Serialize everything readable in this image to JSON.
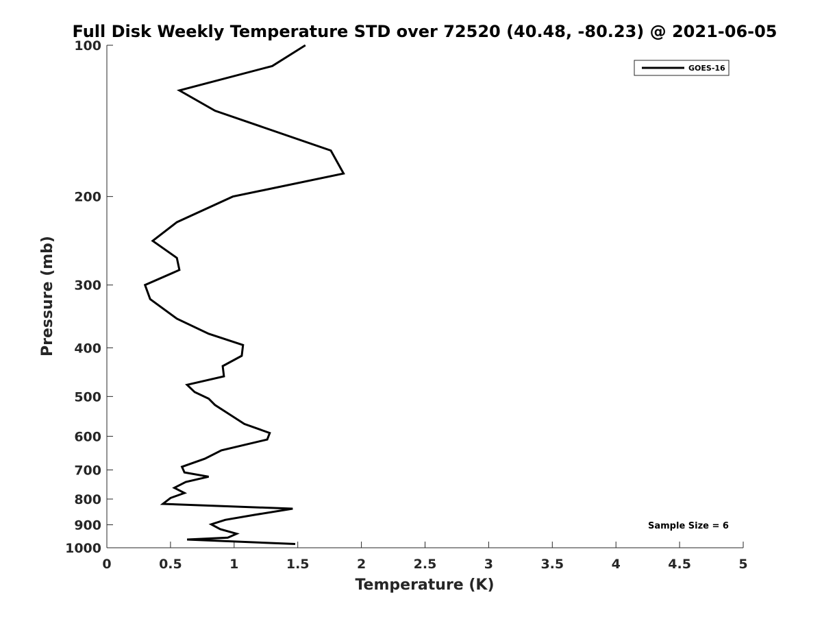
{
  "chart_data": {
    "type": "line",
    "title": "Full Disk Weekly Temperature STD over 72520 (40.48, -80.23) @ 2021-06-05",
    "xlabel": "Temperature (K)",
    "ylabel": "Pressure (mb)",
    "xlim": [
      0,
      5
    ],
    "ylim": [
      100,
      1000
    ],
    "y_scale": "log",
    "y_reversed": true,
    "x_ticks": [
      "0",
      "0.5",
      "1",
      "1.5",
      "2",
      "2.5",
      "3",
      "3.5",
      "4",
      "4.5",
      "5"
    ],
    "x_tick_values": [
      0,
      0.5,
      1,
      1.5,
      2,
      2.5,
      3,
      3.5,
      4,
      4.5,
      5
    ],
    "y_ticks": [
      "100",
      "200",
      "300",
      "400",
      "500",
      "600",
      "700",
      "800",
      "900",
      "1000"
    ],
    "y_tick_values": [
      100,
      200,
      300,
      400,
      500,
      600,
      700,
      800,
      900,
      1000
    ],
    "grid": false,
    "legend_position": "top-right",
    "series": [
      {
        "name": "GOES-16",
        "color": "#000000",
        "x": [
          1.56,
          1.3,
          0.57,
          0.85,
          1.76,
          1.86,
          0.99,
          0.55,
          0.36,
          0.55,
          0.57,
          0.3,
          0.34,
          0.55,
          0.8,
          1.07,
          1.06,
          0.91,
          0.92,
          0.63,
          0.69,
          0.8,
          0.85,
          0.98,
          1.08,
          1.28,
          1.26,
          0.9,
          0.77,
          0.59,
          0.61,
          0.8,
          0.62,
          0.53,
          0.61,
          0.5,
          0.44,
          1.46,
          1.16,
          0.93,
          0.82,
          0.89,
          1.02,
          0.95,
          0.63,
          1.48
        ],
        "y": [
          100,
          110,
          123,
          135,
          162,
          180,
          200,
          225,
          245,
          265,
          280,
          300,
          320,
          350,
          375,
          395,
          415,
          435,
          456,
          474,
          490,
          505,
          520,
          546,
          567,
          591,
          609,
          640,
          665,
          690,
          708,
          722,
          740,
          760,
          778,
          796,
          818,
          836,
          860,
          880,
          898,
          918,
          938,
          955,
          963,
          983
        ]
      }
    ],
    "annotations": [
      "Sample Size = 6"
    ]
  }
}
